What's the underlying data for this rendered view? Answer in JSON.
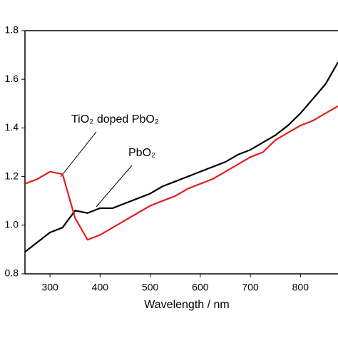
{
  "chart_data": {
    "type": "line",
    "x_label": "Wavelength / nm",
    "x": [
      250,
      275,
      300,
      325,
      350,
      375,
      400,
      425,
      450,
      475,
      500,
      525,
      550,
      575,
      600,
      625,
      650,
      675,
      700,
      725,
      750,
      775,
      800,
      825,
      850,
      875
    ],
    "series": [
      {
        "name": "PbO₂",
        "color": "#000000",
        "values": [
          0.89,
          0.93,
          0.97,
          0.99,
          1.06,
          1.05,
          1.07,
          1.07,
          1.09,
          1.11,
          1.13,
          1.16,
          1.18,
          1.2,
          1.22,
          1.24,
          1.26,
          1.29,
          1.31,
          1.34,
          1.37,
          1.41,
          1.46,
          1.52,
          1.58,
          1.67
        ]
      },
      {
        "name": "TiO₂ doped PbO₂",
        "color": "#e02020",
        "values": [
          1.17,
          1.19,
          1.22,
          1.21,
          1.03,
          0.94,
          0.96,
          0.99,
          1.02,
          1.05,
          1.08,
          1.1,
          1.12,
          1.15,
          1.17,
          1.19,
          1.22,
          1.25,
          1.28,
          1.3,
          1.35,
          1.38,
          1.41,
          1.43,
          1.46,
          1.49
        ]
      }
    ],
    "xlim": [
      250,
      875
    ],
    "xticks": [
      300,
      400,
      500,
      600,
      700,
      800
    ],
    "ylim": [
      0.8,
      1.8
    ],
    "yticks": [
      0.8,
      {
        "value": 1.0,
        "label": "1.0"
      },
      1.2,
      1.4,
      1.6,
      1.8
    ],
    "grid": false
  }
}
